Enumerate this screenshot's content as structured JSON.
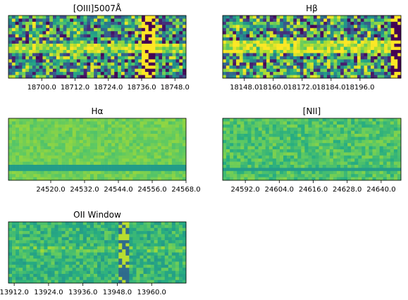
{
  "colors": {
    "viridis_dark": "#440154",
    "viridis_mid": "#21918c",
    "viridis_green": "#5ec962",
    "viridis_yellow": "#fde725"
  },
  "chart_data": [
    {
      "type": "heatmap",
      "title": "[OIII]5007Å",
      "xlim": [
        18688.0,
        18752.0
      ],
      "xticks": [
        18700.0,
        18712.0,
        18724.0,
        18736.0,
        18748.0
      ],
      "tick_labels": [
        "18700.0",
        "18712.0",
        "18724.0",
        "18736.0",
        "18748.0"
      ],
      "colormap": "viridis",
      "grid": false,
      "note_features": "noisy 2D spectrum with emission band and bright vertical column near 18737"
    },
    {
      "type": "heatmap",
      "title": "Hβ",
      "xlim": [
        18139.0,
        18213.0
      ],
      "xticks": [
        18148.0,
        18160.0,
        18172.0,
        18184.0,
        18196.0
      ],
      "tick_labels": [
        "18148.0",
        "18160.0",
        "18172.0",
        "18184.0",
        "18196.0"
      ],
      "colormap": "viridis",
      "grid": false
    },
    {
      "type": "heatmap",
      "title": "Hα",
      "xlim": [
        24505.0,
        24568.0
      ],
      "xticks": [
        24520.0,
        24532.0,
        24544.0,
        24556.0,
        24568.0
      ],
      "tick_labels": [
        "24520.0",
        "24532.0",
        "24544.0",
        "24556.0",
        "24568.0"
      ],
      "colormap": "viridis",
      "grid": false
    },
    {
      "type": "heatmap",
      "title": "[NII]",
      "xlim": [
        24584.0,
        24647.0
      ],
      "xticks": [
        24592.0,
        24604.0,
        24616.0,
        24628.0,
        24640.0
      ],
      "tick_labels": [
        "24592.0",
        "24604.0",
        "24616.0",
        "24628.0",
        "24640.0"
      ],
      "colormap": "viridis",
      "grid": false
    },
    {
      "type": "heatmap",
      "title": "OII Window",
      "xlim": [
        13910.0,
        13972.0
      ],
      "xticks": [
        13912.0,
        13924.0,
        13936.0,
        13948.0,
        13960.0
      ],
      "tick_labels": [
        "13912.0",
        "13924.0",
        "13936.0",
        "13948.0",
        "13960.0"
      ],
      "colormap": "viridis",
      "grid": false
    }
  ]
}
